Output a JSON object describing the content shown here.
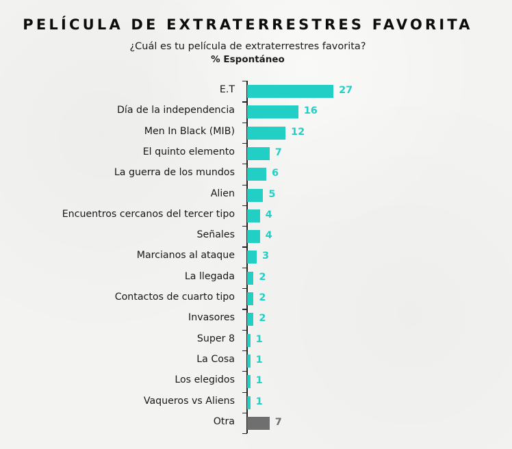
{
  "header": {
    "title": "PELÍCULA DE EXTRATERRESTRES FAVORITA",
    "question": "¿Cuál es tu película de extraterrestres favorita?",
    "measure": "% Espontáneo"
  },
  "colors": {
    "bar": "#22cfc4",
    "other_bar": "#6f6f6f",
    "background": "#f3f3f1",
    "text": "#161616"
  },
  "chart_data": {
    "type": "bar",
    "orientation": "horizontal",
    "title": "PELÍCULA DE EXTRATERRESTRES FAVORITA",
    "subtitle": "¿Cuál es tu película de extraterrestres favorita?",
    "measure_label": "% Espontáneo",
    "xlabel": "",
    "ylabel": "",
    "grid": false,
    "legend": null,
    "value_labels": true,
    "categories": [
      "E.T",
      "Día de la independencia",
      "Men In Black (MIB)",
      "El quinto elemento",
      "La guerra de los mundos",
      "Alien",
      "Encuentros cercanos del tercer tipo",
      "Señales",
      "Marcianos al ataque",
      "La llegada",
      "Contactos de cuarto tipo",
      "Invasores",
      "Super 8",
      "La Cosa",
      "Los elegidos",
      "Vaqueros vs Aliens",
      "Otra"
    ],
    "values": [
      27,
      16,
      12,
      7,
      6,
      5,
      4,
      4,
      3,
      2,
      2,
      2,
      1,
      1,
      1,
      1,
      7
    ],
    "bar_colors": [
      "#22cfc4",
      "#22cfc4",
      "#22cfc4",
      "#22cfc4",
      "#22cfc4",
      "#22cfc4",
      "#22cfc4",
      "#22cfc4",
      "#22cfc4",
      "#22cfc4",
      "#22cfc4",
      "#22cfc4",
      "#22cfc4",
      "#22cfc4",
      "#22cfc4",
      "#22cfc4",
      "#6f6f6f"
    ],
    "xlim": [
      0,
      30
    ]
  }
}
